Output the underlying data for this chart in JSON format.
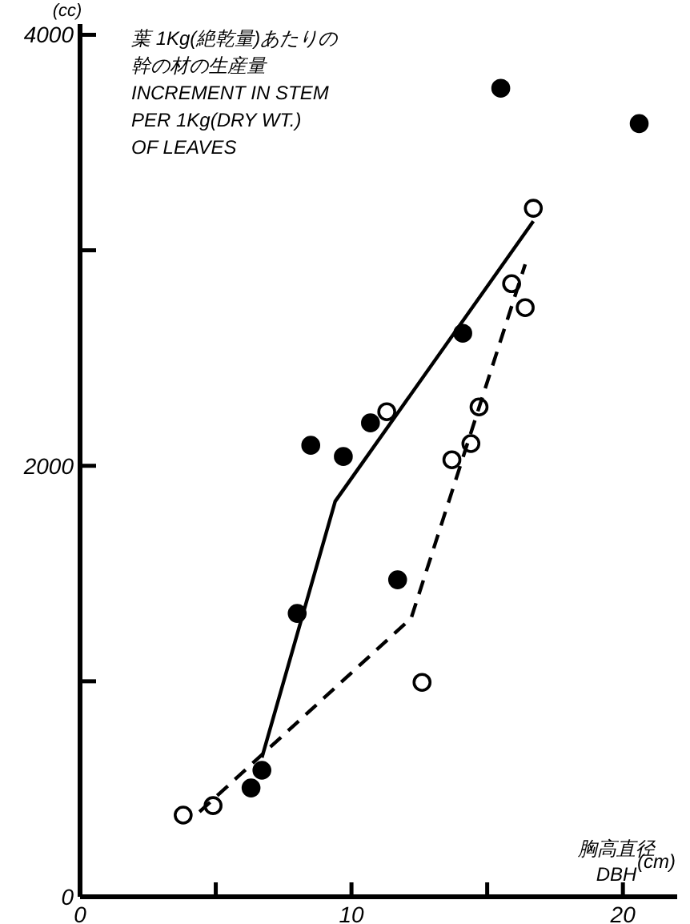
{
  "chart_data": {
    "type": "scatter",
    "ylabel": "INCREMENT IN STEM\nPER 1Kg(DRY WT.)\nOF LEAVES",
    "xlabel": "胸高直径\nDBH",
    "annotations": [
      "(cc)",
      "(cm)",
      "葉 1Kg(絶乾量)あたりの",
      "幹の材の生産量"
    ],
    "xlim": [
      0,
      22
    ],
    "ylim": [
      0,
      4050
    ],
    "xticks": [
      0,
      {
        "value": 5,
        "label": null
      },
      10,
      {
        "value": 15,
        "label": null
      },
      20
    ],
    "yticks": [
      0,
      {
        "value": 1000,
        "label": null
      },
      2000,
      {
        "value": 3000,
        "label": null
      },
      4000
    ],
    "series": [
      {
        "marker": "circle",
        "color": "#000000",
        "x": [
          6.3,
          6.7,
          8.0,
          8.5,
          9.7,
          10.7,
          11.7,
          14.1,
          15.5,
          20.6
        ],
        "values": [
          505,
          587,
          1315,
          2095,
          2043,
          2199,
          1471,
          2615,
          3752,
          3588
        ]
      },
      {
        "marker": "circle",
        "color": "#ffffff",
        "x": [
          3.8,
          4.9,
          11.3,
          12.6,
          13.7,
          14.4,
          14.7,
          15.9,
          16.4,
          16.7
        ],
        "values": [
          379,
          423,
          2251,
          995,
          2028,
          2103,
          2273,
          2845,
          2734,
          3195
        ]
      },
      {
        "type": "line",
        "line_style": "solid",
        "color": "#000000",
        "x": [
          6.7,
          9.4,
          16.7
        ],
        "values": [
          646,
          1835,
          3135
        ]
      },
      {
        "type": "line",
        "line_style": "dashed",
        "color": "#000000",
        "x": [
          4.4,
          12.2,
          16.4
        ],
        "values": [
          394,
          1293,
          2935
        ]
      }
    ]
  }
}
